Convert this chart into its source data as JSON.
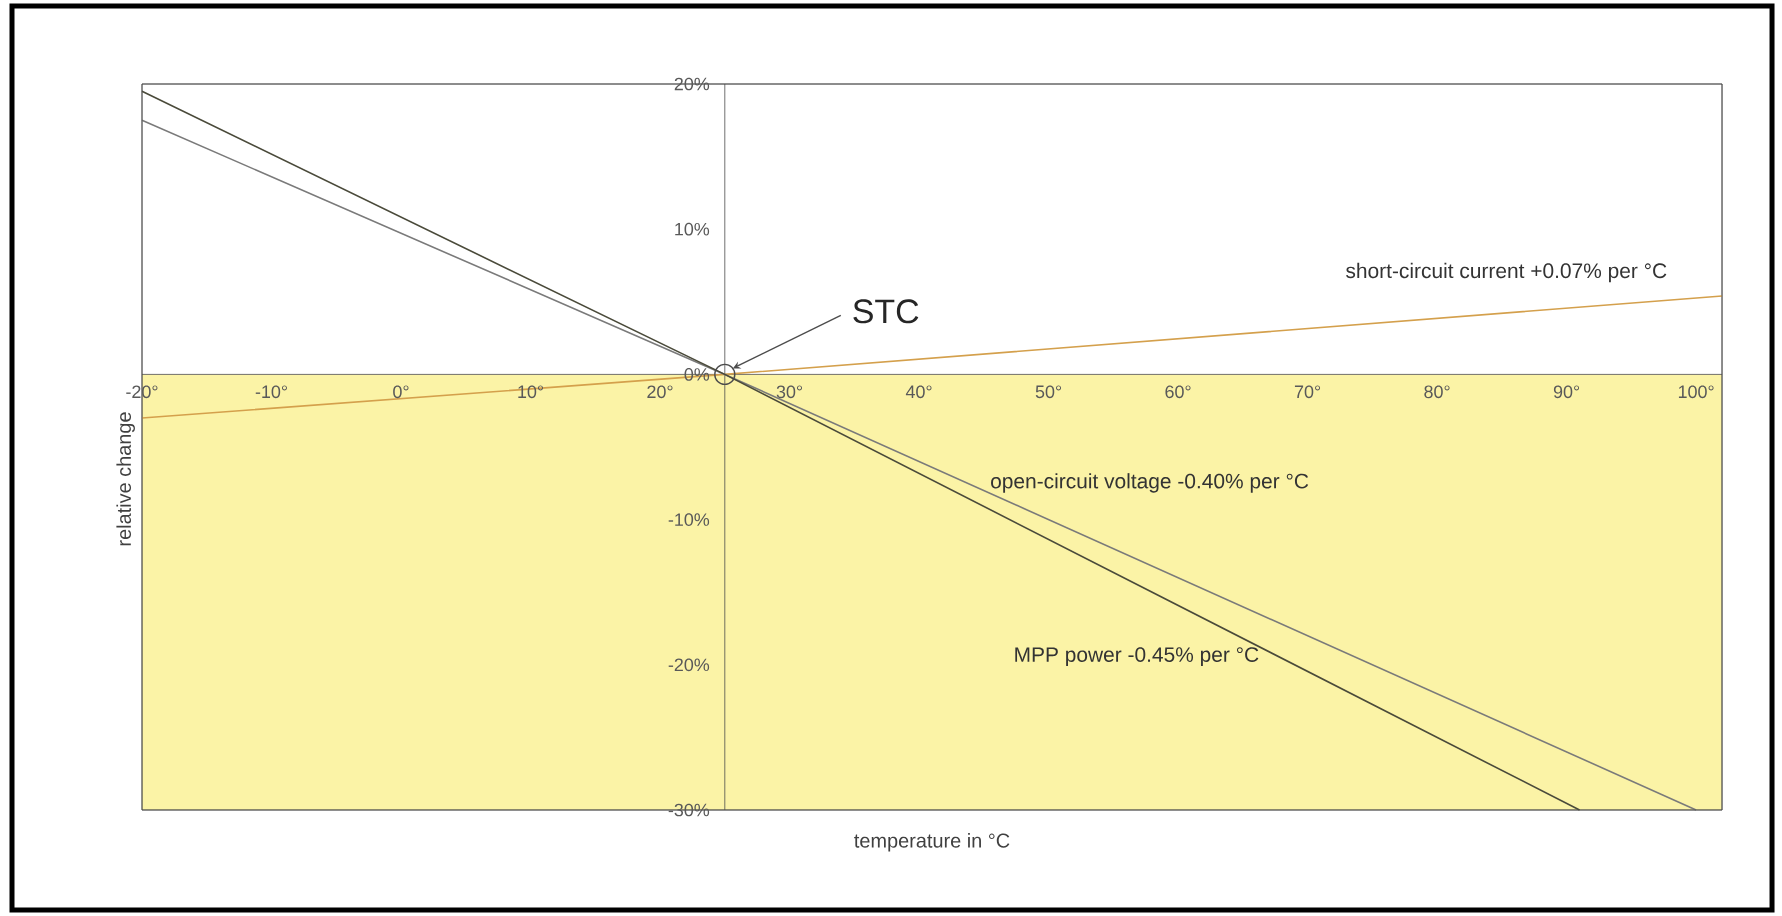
{
  "chart_data": {
    "type": "line",
    "xlabel": "temperature in °C",
    "ylabel": "relative change",
    "xlim": [
      -20,
      102
    ],
    "ylim": [
      -30,
      20
    ],
    "xticks": [
      {
        "value": -20,
        "label": "-20°"
      },
      {
        "value": -10,
        "label": "-10°"
      },
      {
        "value": 0,
        "label": "0°"
      },
      {
        "value": 10,
        "label": "10°"
      },
      {
        "value": 20,
        "label": "20°"
      },
      {
        "value": 30,
        "label": "30°"
      },
      {
        "value": 40,
        "label": "40°"
      },
      {
        "value": 50,
        "label": "50°"
      },
      {
        "value": 60,
        "label": "60°"
      },
      {
        "value": 70,
        "label": "70°"
      },
      {
        "value": 80,
        "label": "80°"
      },
      {
        "value": 90,
        "label": "90°"
      },
      {
        "value": 100,
        "label": "100°"
      }
    ],
    "yticks": [
      {
        "value": -30,
        "label": "-30%"
      },
      {
        "value": -20,
        "label": "-20%"
      },
      {
        "value": -10,
        "label": "-10%"
      },
      {
        "value": 0,
        "label": "0%"
      },
      {
        "value": 10,
        "label": "10%"
      },
      {
        "value": 20,
        "label": "20%"
      }
    ],
    "series": [
      {
        "name": "short-circuit current +0.07% per °C",
        "color": "#d4a04c",
        "x": [
          -20,
          25,
          102
        ],
        "values": [
          -3,
          0,
          5.4
        ]
      },
      {
        "name": "open-circuit voltage -0.40% per °C",
        "color": "#7a7a7a",
        "x": [
          -20,
          25,
          100
        ],
        "values": [
          17.5,
          0,
          -30
        ]
      },
      {
        "name": "MPP power -0.45% per °C",
        "color": "#4a4a3a",
        "x": [
          -20,
          25,
          91
        ],
        "values": [
          19.5,
          0,
          -30
        ]
      }
    ],
    "bands": [
      {
        "axis": "y",
        "from": -30,
        "to": 0,
        "color": "#fbf3a6"
      }
    ],
    "annotations": [
      {
        "text": "STC",
        "x": 25,
        "y": 0
      }
    ],
    "grid": false,
    "marker": "none",
    "line_style": "solid"
  }
}
